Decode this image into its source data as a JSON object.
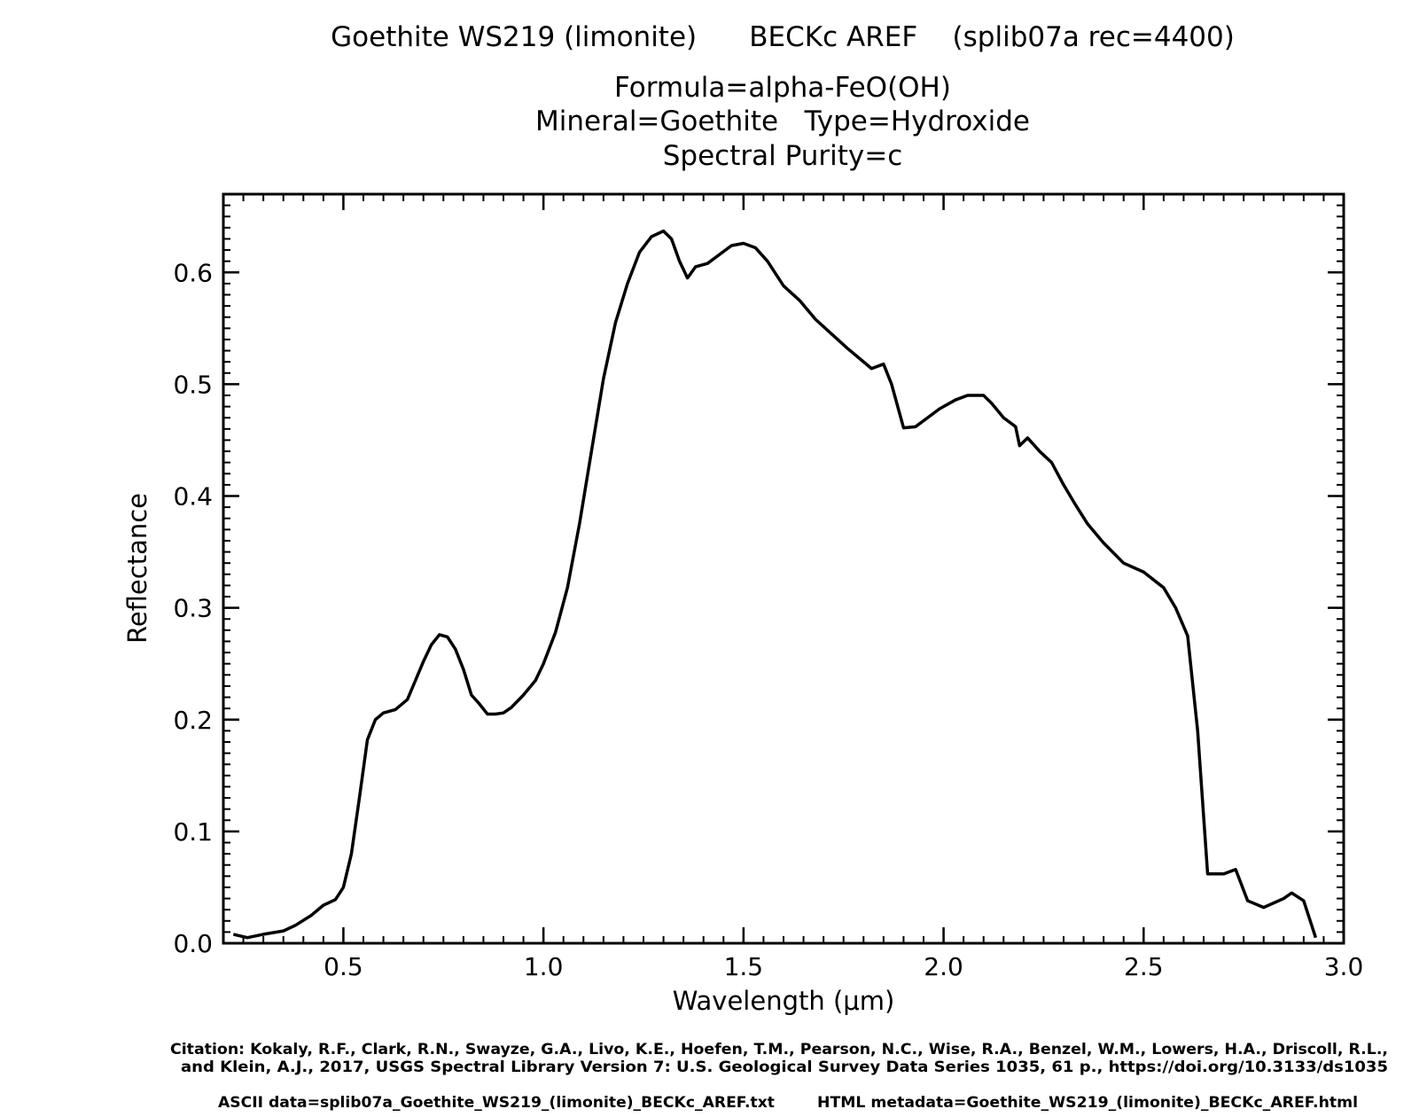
{
  "chart_data": {
    "type": "line",
    "title_lines": [
      "Goethite WS219 (limonite)      BECKc AREF    (splib07a rec=4400)",
      "Formula=alpha-FeO(OH)",
      "Mineral=Goethite   Type=Hydroxide",
      "Spectral Purity=c"
    ],
    "xlabel": "Wavelength (μm)",
    "ylabel": "Reflectance",
    "xlim": [
      0.2,
      3.0
    ],
    "ylim": [
      0.0,
      0.67
    ],
    "xticks": [
      {
        "value": 0.5,
        "label": "0.5"
      },
      {
        "value": 1.0,
        "label": "1.0"
      },
      {
        "value": 1.5,
        "label": "1.5"
      },
      {
        "value": 2.0,
        "label": "2.0"
      },
      {
        "value": 2.5,
        "label": "2.5"
      },
      {
        "value": 3.0,
        "label": "3.0"
      }
    ],
    "yticks": [
      {
        "value": 0.0,
        "label": "0.0"
      },
      {
        "value": 0.1,
        "label": "0.1"
      },
      {
        "value": 0.2,
        "label": "0.2"
      },
      {
        "value": 0.3,
        "label": "0.3"
      },
      {
        "value": 0.4,
        "label": "0.4"
      },
      {
        "value": 0.5,
        "label": "0.5"
      },
      {
        "value": 0.6,
        "label": "0.6"
      }
    ],
    "grid": false,
    "series": [
      {
        "color": "#000000",
        "points": [
          [
            0.225,
            0.008
          ],
          [
            0.26,
            0.005
          ],
          [
            0.3,
            0.008
          ],
          [
            0.35,
            0.011
          ],
          [
            0.38,
            0.016
          ],
          [
            0.42,
            0.025
          ],
          [
            0.45,
            0.034
          ],
          [
            0.48,
            0.039
          ],
          [
            0.5,
            0.05
          ],
          [
            0.52,
            0.08
          ],
          [
            0.54,
            0.13
          ],
          [
            0.56,
            0.182
          ],
          [
            0.58,
            0.2
          ],
          [
            0.6,
            0.206
          ],
          [
            0.63,
            0.209
          ],
          [
            0.66,
            0.218
          ],
          [
            0.68,
            0.235
          ],
          [
            0.7,
            0.252
          ],
          [
            0.72,
            0.267
          ],
          [
            0.74,
            0.276
          ],
          [
            0.76,
            0.274
          ],
          [
            0.78,
            0.263
          ],
          [
            0.8,
            0.245
          ],
          [
            0.82,
            0.222
          ],
          [
            0.84,
            0.214
          ],
          [
            0.86,
            0.205
          ],
          [
            0.88,
            0.205
          ],
          [
            0.9,
            0.206
          ],
          [
            0.92,
            0.211
          ],
          [
            0.95,
            0.222
          ],
          [
            0.98,
            0.235
          ],
          [
            1.0,
            0.25
          ],
          [
            1.03,
            0.278
          ],
          [
            1.06,
            0.318
          ],
          [
            1.09,
            0.375
          ],
          [
            1.12,
            0.44
          ],
          [
            1.15,
            0.505
          ],
          [
            1.18,
            0.555
          ],
          [
            1.21,
            0.59
          ],
          [
            1.24,
            0.618
          ],
          [
            1.27,
            0.632
          ],
          [
            1.3,
            0.637
          ],
          [
            1.32,
            0.63
          ],
          [
            1.34,
            0.61
          ],
          [
            1.36,
            0.595
          ],
          [
            1.38,
            0.605
          ],
          [
            1.41,
            0.608
          ],
          [
            1.44,
            0.616
          ],
          [
            1.47,
            0.624
          ],
          [
            1.5,
            0.626
          ],
          [
            1.53,
            0.622
          ],
          [
            1.56,
            0.61
          ],
          [
            1.6,
            0.588
          ],
          [
            1.64,
            0.575
          ],
          [
            1.68,
            0.558
          ],
          [
            1.72,
            0.545
          ],
          [
            1.76,
            0.532
          ],
          [
            1.79,
            0.523
          ],
          [
            1.82,
            0.514
          ],
          [
            1.85,
            0.518
          ],
          [
            1.87,
            0.5
          ],
          [
            1.9,
            0.461
          ],
          [
            1.93,
            0.462
          ],
          [
            1.96,
            0.47
          ],
          [
            1.99,
            0.478
          ],
          [
            2.03,
            0.486
          ],
          [
            2.06,
            0.49
          ],
          [
            2.1,
            0.49
          ],
          [
            2.12,
            0.483
          ],
          [
            2.15,
            0.47
          ],
          [
            2.18,
            0.462
          ],
          [
            2.19,
            0.445
          ],
          [
            2.21,
            0.452
          ],
          [
            2.24,
            0.44
          ],
          [
            2.27,
            0.43
          ],
          [
            2.3,
            0.41
          ],
          [
            2.33,
            0.392
          ],
          [
            2.36,
            0.375
          ],
          [
            2.4,
            0.358
          ],
          [
            2.45,
            0.34
          ],
          [
            2.5,
            0.332
          ],
          [
            2.55,
            0.318
          ],
          [
            2.58,
            0.3
          ],
          [
            2.61,
            0.275
          ],
          [
            2.635,
            0.19
          ],
          [
            2.66,
            0.062
          ],
          [
            2.7,
            0.062
          ],
          [
            2.73,
            0.066
          ],
          [
            2.76,
            0.038
          ],
          [
            2.8,
            0.032
          ],
          [
            2.85,
            0.04
          ],
          [
            2.87,
            0.045
          ],
          [
            2.9,
            0.038
          ],
          [
            2.93,
            0.005
          ]
        ]
      }
    ]
  },
  "citation_lines": [
    "Citation: Kokaly, R.F., Clark, R.N., Swayze, G.A., Livo, K.E., Hoefen, T.M., Pearson, N.C., Wise, R.A., Benzel, W.M., Lowers, H.A., Driscoll, R.L.,",
    "and Klein, A.J., 2017, USGS Spectral Library Version 7: U.S. Geological Survey Data Series 1035, 61 p., https://doi.org/10.3133/ds1035"
  ],
  "ascii_data": "ASCII data=splib07a_Goethite_WS219_(limonite)_BECKc_AREF.txt",
  "html_metadata": "HTML metadata=Goethite_WS219_(limonite)_BECKc_AREF.html"
}
